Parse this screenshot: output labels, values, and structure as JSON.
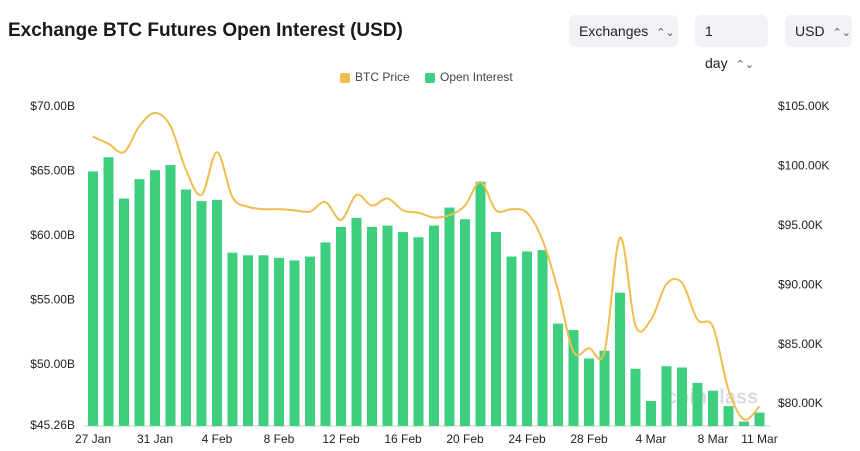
{
  "header": {
    "title": "Exchange BTC Futures Open Interest (USD)",
    "controls": [
      "Exchanges",
      "1 day",
      "USD"
    ]
  },
  "chart_data": {
    "type": "bar_line",
    "watermark": "coinglass",
    "categories": [
      "27 Jan",
      null,
      null,
      null,
      "31 Jan",
      null,
      null,
      null,
      "4 Feb",
      null,
      null,
      null,
      "8 Feb",
      null,
      null,
      null,
      "12 Feb",
      null,
      null,
      null,
      "16 Feb",
      null,
      null,
      null,
      "20 Feb",
      null,
      null,
      null,
      "24 Feb",
      null,
      null,
      null,
      "28 Feb",
      null,
      null,
      null,
      "4 Mar",
      null,
      null,
      null,
      "8 Mar",
      null,
      null,
      "11 Mar"
    ],
    "series": [
      {
        "name": "BTC Price",
        "color": "#f0bd4f",
        "axis": "y2",
        "values": [
          102.5,
          101.9,
          101.2,
          103.4,
          104.5,
          103.4,
          99.7,
          97.6,
          101.2,
          97.4,
          96.6,
          96.4,
          96.4,
          96.3,
          96.2,
          97.0,
          95.5,
          97.6,
          96.7,
          97.3,
          96.3,
          96.1,
          95.7,
          95.9,
          96.7,
          98.7,
          96.3,
          96.4,
          96.1,
          93.8,
          89.6,
          84.4,
          84.7,
          84.4,
          94.0,
          86.6,
          87.1,
          90.1,
          90.2,
          87.1,
          86.5,
          81.2,
          78.7,
          79.8
        ]
      },
      {
        "name": "Open Interest",
        "color": "#3ecf7e",
        "values": [
          65.0,
          66.1,
          62.9,
          64.4,
          65.1,
          65.5,
          63.6,
          62.7,
          62.8,
          58.7,
          58.5,
          58.5,
          58.3,
          58.1,
          58.4,
          59.5,
          60.7,
          61.4,
          60.7,
          60.8,
          60.3,
          59.9,
          60.8,
          62.2,
          61.3,
          64.2,
          60.3,
          58.4,
          58.8,
          58.9,
          53.2,
          52.7,
          50.5,
          51.1,
          55.6,
          49.7,
          47.2,
          49.9,
          49.8,
          48.6,
          48.0,
          46.8,
          45.6,
          46.3
        ]
      }
    ],
    "ylim": [
      45.26,
      70
    ],
    "yticks": [
      {
        "value": 45.26,
        "label": "$45.26B"
      },
      {
        "value": 50,
        "label": "$50.00B"
      },
      {
        "value": 55,
        "label": "$55.00B"
      },
      {
        "value": 60,
        "label": "$60.00B"
      },
      {
        "value": 65,
        "label": "$65.00B"
      },
      {
        "value": 70,
        "label": "$70.00B"
      }
    ],
    "y2lim": [
      78.15,
      105
    ],
    "y2ticks": [
      {
        "value": 80,
        "label": "$80.00K"
      },
      {
        "value": 85,
        "label": "$85.00K"
      },
      {
        "value": 90,
        "label": "$90.00K"
      },
      {
        "value": 95,
        "label": "$95.00K"
      },
      {
        "value": 100,
        "label": "$100.00K"
      },
      {
        "value": 105,
        "label": "$105.00K"
      }
    ],
    "legend": "top"
  }
}
